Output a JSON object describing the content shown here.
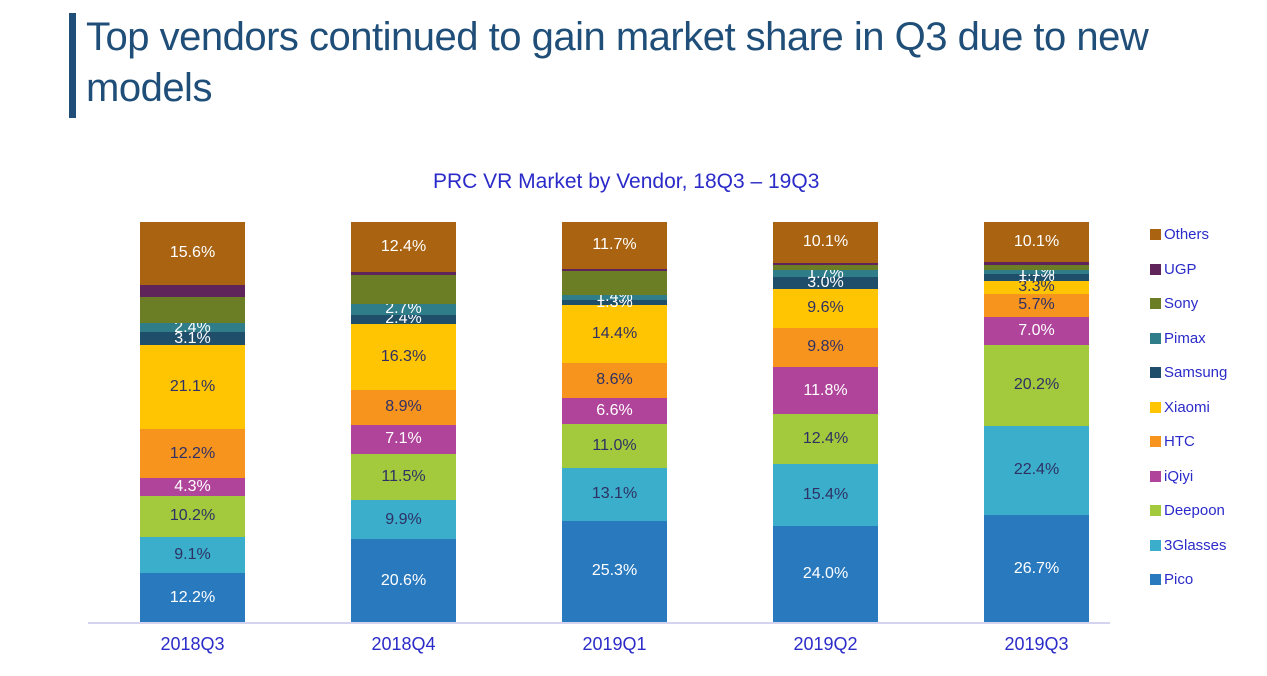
{
  "header": {
    "title": "Top vendors continued to gain market share in Q3 due to new models"
  },
  "chart_data": {
    "type": "bar",
    "subtype": "100%-stacked-column",
    "title": "PRC VR Market by Vendor, 18Q3 – 19Q3",
    "categories": [
      "2018Q3",
      "2018Q4",
      "2019Q1",
      "2019Q2",
      "2019Q3"
    ],
    "value_unit": "% market share",
    "series_bottom_to_top": [
      {
        "name": "Pico",
        "color": "#2979BF",
        "label_color": "#FFFFFF",
        "values": [
          12.2,
          20.6,
          25.3,
          24.0,
          26.7
        ],
        "labels": [
          "12.2%",
          "20.6%",
          "25.3%",
          "24.0%",
          "26.7%"
        ]
      },
      {
        "name": "3Glasses",
        "color": "#3AAECB",
        "label_color": "#2F3064",
        "values": [
          9.1,
          9.9,
          13.1,
          15.4,
          22.4
        ],
        "labels": [
          "9.1%",
          "9.9%",
          "13.1%",
          "15.4%",
          "22.4%"
        ]
      },
      {
        "name": "Deepoon",
        "color": "#A3C93C",
        "label_color": "#2F3064",
        "values": [
          10.2,
          11.5,
          11.0,
          12.4,
          20.2
        ],
        "labels": [
          "10.2%",
          "11.5%",
          "11.0%",
          "12.4%",
          "20.2%"
        ]
      },
      {
        "name": "iQiyi",
        "color": "#B0449A",
        "label_color": "#FFFFFF",
        "values": [
          4.3,
          7.1,
          6.6,
          11.8,
          7.0
        ],
        "labels": [
          "4.3%",
          "7.1%",
          "6.6%",
          "11.8%",
          "7.0%"
        ]
      },
      {
        "name": "HTC",
        "color": "#F7941E",
        "label_color": "#2F3064",
        "values": [
          12.2,
          8.9,
          8.6,
          9.8,
          5.7
        ],
        "labels": [
          "12.2%",
          "8.9%",
          "8.6%",
          "9.8%",
          "5.7%"
        ]
      },
      {
        "name": "Xiaomi",
        "color": "#FFC402",
        "label_color": "#2F3064",
        "values": [
          21.1,
          16.3,
          14.4,
          9.6,
          3.3
        ],
        "labels": [
          "21.1%",
          "16.3%",
          "14.4%",
          "9.6%",
          "3.3%"
        ]
      },
      {
        "name": "Samsung",
        "color": "#1F4E6B",
        "label_color": "#FFFFFF",
        "values": [
          3.1,
          2.4,
          1.3,
          3.0,
          1.7
        ],
        "labels": [
          "3.1%",
          "2.4%",
          "1.3%",
          "3.0%",
          "1.7%"
        ]
      },
      {
        "name": "Pimax",
        "color": "#2E7D89",
        "label_color": "#FFFFFF",
        "values": [
          2.4,
          2.7,
          1.4,
          1.7,
          1.1
        ],
        "labels": [
          "2.4%",
          "2.7%",
          "1.4%",
          "1.7%",
          "1.1%"
        ]
      },
      {
        "name": "Sony",
        "color": "#6B7E26",
        "label_color": "",
        "values": [
          6.5,
          7.2,
          5.8,
          1.3,
          1.2
        ],
        "labels": [
          "",
          "",
          "",
          "",
          ""
        ],
        "values_estimated_no_data_labels": true
      },
      {
        "name": "UGP",
        "color": "#5F2459",
        "label_color": "",
        "values": [
          3.0,
          0.8,
          0.6,
          0.6,
          0.6
        ],
        "labels": [
          "",
          "",
          "",
          "",
          ""
        ],
        "values_estimated_no_data_labels": true
      },
      {
        "name": "Others",
        "color": "#A96311",
        "label_color": "#FFFFFF",
        "values": [
          15.6,
          12.4,
          11.7,
          10.1,
          10.1
        ],
        "labels": [
          "15.6%",
          "12.4%",
          "11.7%",
          "10.1%",
          "10.1%"
        ]
      }
    ],
    "legend": {
      "position": "right",
      "order_top_to_bottom": [
        "Others",
        "UGP",
        "Sony",
        "Pimax",
        "Samsung",
        "Xiaomi",
        "HTC",
        "iQiyi",
        "Deepoon",
        "3Glasses",
        "Pico"
      ]
    },
    "axis": {
      "x_labels_color": "#2B2BC9",
      "baseline_color": "#D4D4F0",
      "gridlines": false,
      "y_axis_shown": false
    }
  },
  "colors": {
    "title_text": "#1F4E79",
    "accent_bar": "#1F4E79",
    "chart_text_blue": "#2B2BC9",
    "dark_value_label": "#2F3064",
    "background": "#FFFFFF"
  }
}
